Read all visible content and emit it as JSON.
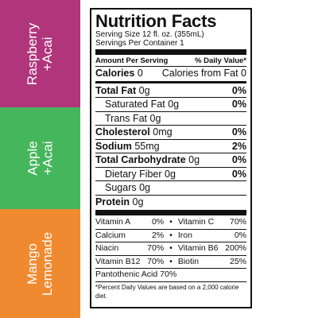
{
  "flavors": [
    {
      "line1": "Raspberry",
      "line2": "+Acai",
      "color": "#b0357b"
    },
    {
      "line1": "Apple",
      "line2": "+Acai",
      "color": "#46b65c"
    },
    {
      "line1": "Mango",
      "line2": "Lemonade",
      "color": "#ef8a30"
    }
  ],
  "label": {
    "title": "Nutrition Facts",
    "serving_size": "Serving Size 12 fl. oz. (355mL)",
    "servings_per_container": "Servings Per Container 1",
    "amount_per_serving": "Amount Per Serving",
    "daily_value_header": "% Daily Value*",
    "calories_label": "Calories",
    "calories_value": "0",
    "calories_fat": "Calories from Fat 0",
    "nutrients": [
      {
        "name": "Total Fat",
        "amount": "0g",
        "dv": "0%"
      },
      {
        "name": "Saturated Fat",
        "amount": "0g",
        "dv": "0%"
      },
      {
        "name": "Trans Fat",
        "amount": "0g",
        "dv": ""
      },
      {
        "name": "Cholesterol",
        "amount": "0mg",
        "dv": "0%"
      },
      {
        "name": "Sodium",
        "amount": "55mg",
        "dv": "2%"
      },
      {
        "name": "Total Carbohydrate",
        "amount": "0g",
        "dv": "0%"
      },
      {
        "name": "Dietary Fiber",
        "amount": "0g",
        "dv": "0%"
      },
      {
        "name": "Sugars",
        "amount": "0g",
        "dv": ""
      },
      {
        "name": "Protein",
        "amount": "0g",
        "dv": ""
      }
    ],
    "vitamins": [
      {
        "l_name": "Vitamin A",
        "l_val": "0%",
        "r_name": "Vitamin C",
        "r_val": "70%"
      },
      {
        "l_name": "Calcium",
        "l_val": "2%",
        "r_name": "Iron",
        "r_val": "0%"
      },
      {
        "l_name": "Niacin",
        "l_val": "70%",
        "r_name": "Vitamin B6",
        "r_val": "200%"
      },
      {
        "l_name": "Vitamin B12",
        "l_val": "70%",
        "r_name": "Biotin",
        "r_val": "25%"
      }
    ],
    "pantothenic": "Pantothenic Acid 70%",
    "footnote": "*Percent Daily Values are based on a 2,000 calorie diet."
  }
}
